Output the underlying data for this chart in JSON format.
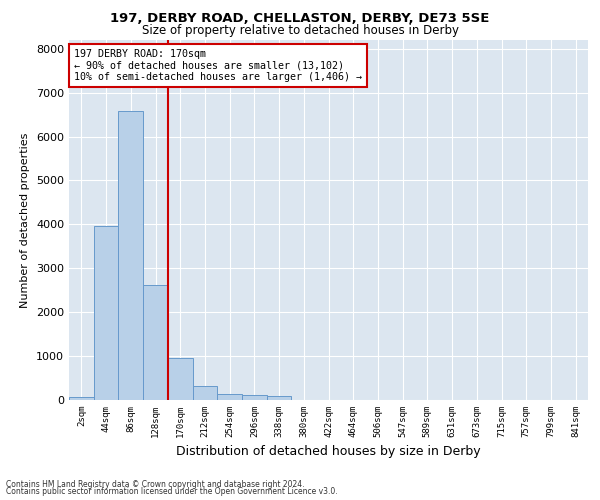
{
  "title1": "197, DERBY ROAD, CHELLASTON, DERBY, DE73 5SE",
  "title2": "Size of property relative to detached houses in Derby",
  "xlabel": "Distribution of detached houses by size in Derby",
  "ylabel": "Number of detached properties",
  "bar_labels": [
    "2sqm",
    "44sqm",
    "86sqm",
    "128sqm",
    "170sqm",
    "212sqm",
    "254sqm",
    "296sqm",
    "338sqm",
    "380sqm",
    "422sqm",
    "464sqm",
    "506sqm",
    "547sqm",
    "589sqm",
    "631sqm",
    "673sqm",
    "715sqm",
    "757sqm",
    "799sqm",
    "841sqm"
  ],
  "bar_values": [
    75,
    3960,
    6580,
    2620,
    960,
    315,
    130,
    115,
    95,
    0,
    0,
    0,
    0,
    0,
    0,
    0,
    0,
    0,
    0,
    0,
    0
  ],
  "bar_color": "#b8d0e8",
  "bar_edge_color": "#6699cc",
  "vline_color": "#cc0000",
  "ylim_max": 8200,
  "yticks": [
    0,
    1000,
    2000,
    3000,
    4000,
    5000,
    6000,
    7000,
    8000
  ],
  "annotation_line1": "197 DERBY ROAD: 170sqm",
  "annotation_line2": "← 90% of detached houses are smaller (13,102)",
  "annotation_line3": "10% of semi-detached houses are larger (1,406) →",
  "annotation_box_color": "#ffffff",
  "annotation_box_edge": "#cc0000",
  "footer1": "Contains HM Land Registry data © Crown copyright and database right 2024.",
  "footer2": "Contains public sector information licensed under the Open Government Licence v3.0.",
  "bg_color": "#dce6f0",
  "fig_bg_color": "#ffffff",
  "vline_index": 4
}
